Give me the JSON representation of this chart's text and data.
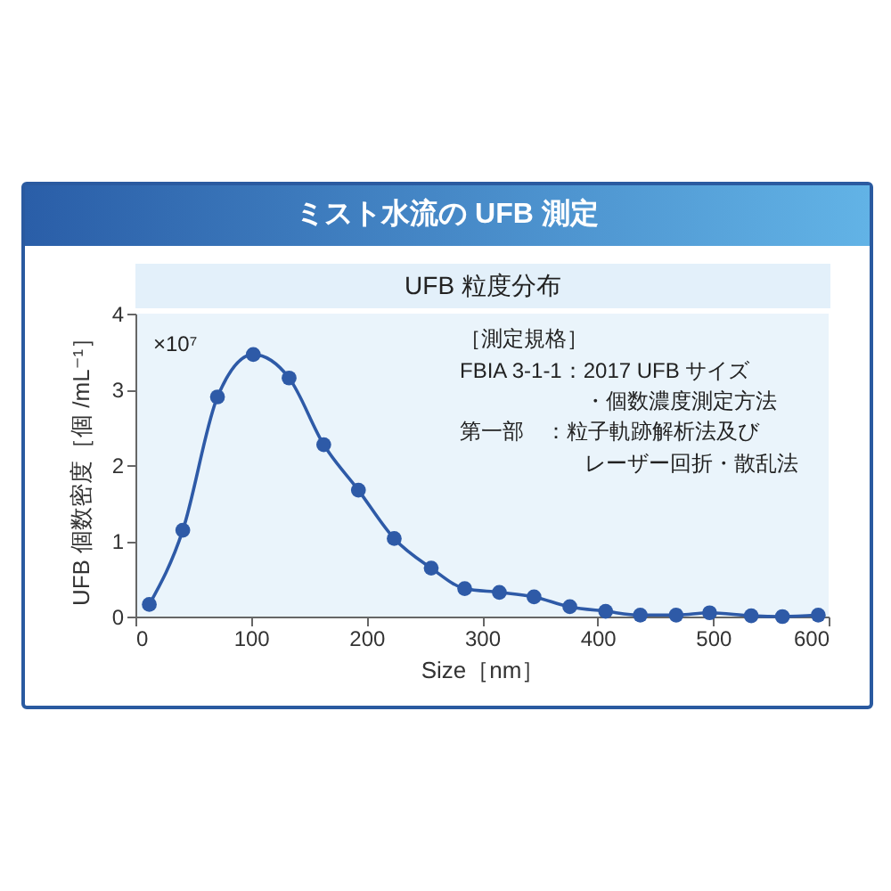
{
  "chart_data": {
    "type": "line",
    "title": "ミスト水流の UFB 測定",
    "subtitle": "UFB 粒度分布",
    "xlabel": "Size［nm］",
    "ylabel": "UFB 個数密度［個 /mL⁻¹］",
    "annotations": [
      "×10⁷",
      "［測定規格］",
      "FBIA 3-1-1：2017 UFB サイズ",
      "・個数濃度測定方法",
      "第一部　：粒子軌跡解析法及び",
      "レーザー回折・散乱法"
    ],
    "x": [
      12,
      41,
      71,
      102,
      133,
      163,
      193,
      224,
      256,
      285,
      315,
      345,
      376,
      407,
      437,
      468,
      497,
      533,
      560,
      591
    ],
    "values": [
      0.16,
      1.14,
      2.9,
      3.46,
      3.15,
      2.27,
      1.67,
      1.03,
      0.64,
      0.37,
      0.32,
      0.26,
      0.13,
      0.07,
      0.02,
      0.02,
      0.05,
      0.01,
      0,
      0.02
    ],
    "color": "#2e5aa7",
    "marker": "circle",
    "grid": false,
    "xlim": [
      0,
      600
    ],
    "xticks": [
      0,
      100,
      200,
      300,
      400,
      500,
      600
    ],
    "ylim": [
      0,
      4
    ],
    "yticks": [
      0,
      1,
      2,
      3,
      4
    ]
  }
}
